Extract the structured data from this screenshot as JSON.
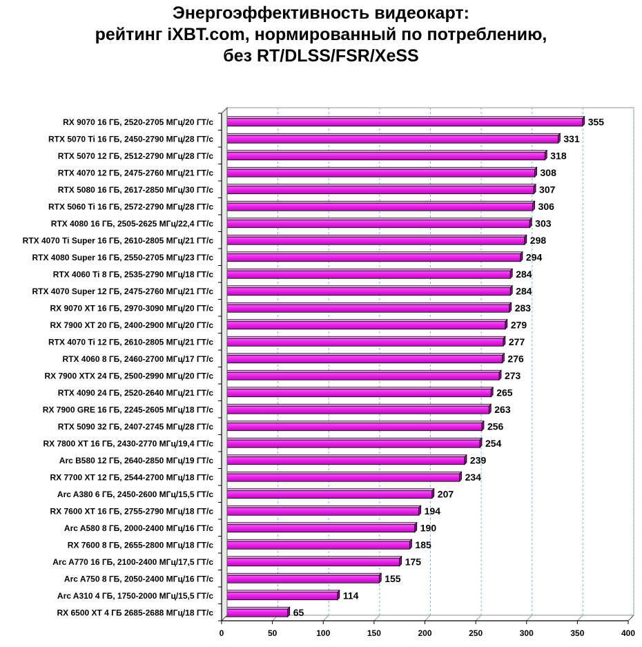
{
  "chart_data": {
    "type": "bar",
    "orientation": "horizontal",
    "title_lines": [
      "Энергоэффективность видеокарт:",
      "рейтинг iXBT.com, нормированный по потреблению,",
      "без RT/DLSS/FSR/XeSS"
    ],
    "xlim": [
      0,
      400
    ],
    "x_ticks": [
      0,
      50,
      100,
      150,
      200,
      250,
      300,
      350,
      400
    ],
    "grid": "vertical-dashed",
    "bar_color": "#e81ee8",
    "categories": [
      "RX 9070 16 ГБ, 2520-2705 МГц/20 ГТ/с",
      "RTX 5070 Ti 16 ГБ, 2450-2790 МГц/28 ГТ/с",
      "RTX 5070 12 ГБ, 2512-2790 МГц/28 ГТ/с",
      "RTX 4070 12 ГБ, 2475-2760 МГц/21 ГТ/с",
      "RTX 5080 16 ГБ, 2617-2850 МГц/30 ГТ/с",
      "RTX 5060 Ti 16 ГБ, 2572-2790 МГц/28 ГТ/с",
      "RTX 4080 16 ГБ, 2505-2625 МГц/22,4 ГТ/с",
      "RTX 4070 Ti Super 16 ГБ, 2610-2805 МГц/21 ГТ/с",
      "RTX 4080 Super 16 ГБ, 2550-2705 МГц/23 ГТ/с",
      "RTX 4060 Ti 8 ГБ, 2535-2790 МГц/18 ГТ/с",
      "RTX 4070 Super 12 ГБ, 2475-2760 МГц/21 ГТ/с",
      "RX 9070 XT 16 ГБ, 2970-3090 МГц/20 ГТ/с",
      "RX 7900 XT 20 ГБ, 2400-2900 МГц/20 ГТ/с",
      "RTX 4070 Ti 12 ГБ, 2610-2805 МГц/21 ГТ/с",
      "RTX 4060 8 ГБ, 2460-2700 МГц/17 ГТ/с",
      "RX 7900 XTX 24 ГБ, 2500-2990 МГц/20 ГТ/с",
      "RTX 4090 24 ГБ, 2520-2640 МГц/21 ГТ/с",
      "RX 7900 GRE 16 ГБ, 2245-2605 МГц/18 ГТ/с",
      "RTX 5090 32 ГБ, 2407-2745 МГц/28 ГТ/с",
      "RX 7800 XT 16 ГБ, 2430-2770 МГц/19,4 ГТ/с",
      "Arc B580 12 ГБ, 2640-2850 МГц/19 ГТ/с",
      "RX 7700 XT 12 ГБ, 2544-2700 МГц/18 ГТ/с",
      "Arc A380 6 ГБ, 2450-2600 МГц/15,5 ГТ/с",
      "RX 7600 XT 16 ГБ, 2755-2790 МГц/18 ГТ/с",
      "Arc A580 8 ГБ, 2000-2400 МГц/16 ГТ/с",
      "RX 7600 8 ГБ, 2655-2800 МГц/18 ГТ/с",
      "Arc A770 16 ГБ, 2100-2400 МГц/17,5 ГТ/с",
      "Arc A750 8 ГБ, 2050-2400 МГц/16 ГТ/с",
      "Arc A310 4 ГБ, 1750-2000 МГц/15,5 ГТ/с",
      "RX 6500 XT 4 ГБ 2685-2688 МГц/18 ГТ/с"
    ],
    "values": [
      355,
      331,
      318,
      308,
      307,
      306,
      303,
      298,
      294,
      284,
      284,
      283,
      279,
      277,
      276,
      273,
      265,
      263,
      256,
      254,
      239,
      234,
      207,
      194,
      190,
      185,
      175,
      155,
      114,
      65
    ]
  }
}
